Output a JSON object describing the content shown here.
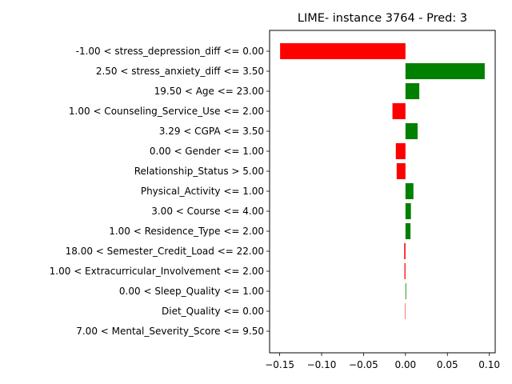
{
  "chart_data": {
    "type": "bar",
    "orientation": "horizontal",
    "title": "LIME- instance 3764 - Pred: 3",
    "xlabel": "",
    "ylabel": "",
    "xlim": [
      -0.162,
      0.107
    ],
    "xticks": [
      -0.15,
      -0.1,
      -0.05,
      0.0,
      0.05,
      0.1
    ],
    "xtick_labels": [
      "−0.15",
      "−0.10",
      "−0.05",
      "0.00",
      "0.05",
      "0.10"
    ],
    "grid": false,
    "colors": {
      "positive": "#008000",
      "negative": "#ff0000"
    },
    "categories": [
      "-1.00 < stress_depression_diff <= 0.00",
      "2.50 < stress_anxiety_diff <= 3.50",
      "19.50 < Age <= 23.00",
      "1.00 < Counseling_Service_Use <= 2.00",
      "3.29 < CGPA <= 3.50",
      "0.00 < Gender <= 1.00",
      "Relationship_Status > 5.00",
      "Physical_Activity <= 1.00",
      "3.00 < Course <= 4.00",
      "1.00 < Residence_Type <= 2.00",
      "18.00 < Semester_Credit_Load <= 22.00",
      "1.00 < Extracurricular_Involvement <= 2.00",
      "0.00 < Sleep_Quality <= 1.00",
      "Diet_Quality <= 0.00",
      "7.00 < Mental_Severity_Score <= 9.50"
    ],
    "values": [
      -0.1495,
      0.0945,
      0.0165,
      -0.0155,
      0.0145,
      -0.0115,
      -0.0105,
      0.0095,
      0.0065,
      0.006,
      -0.0015,
      -0.0012,
      0.0008,
      -0.0005,
      0.0
    ]
  }
}
